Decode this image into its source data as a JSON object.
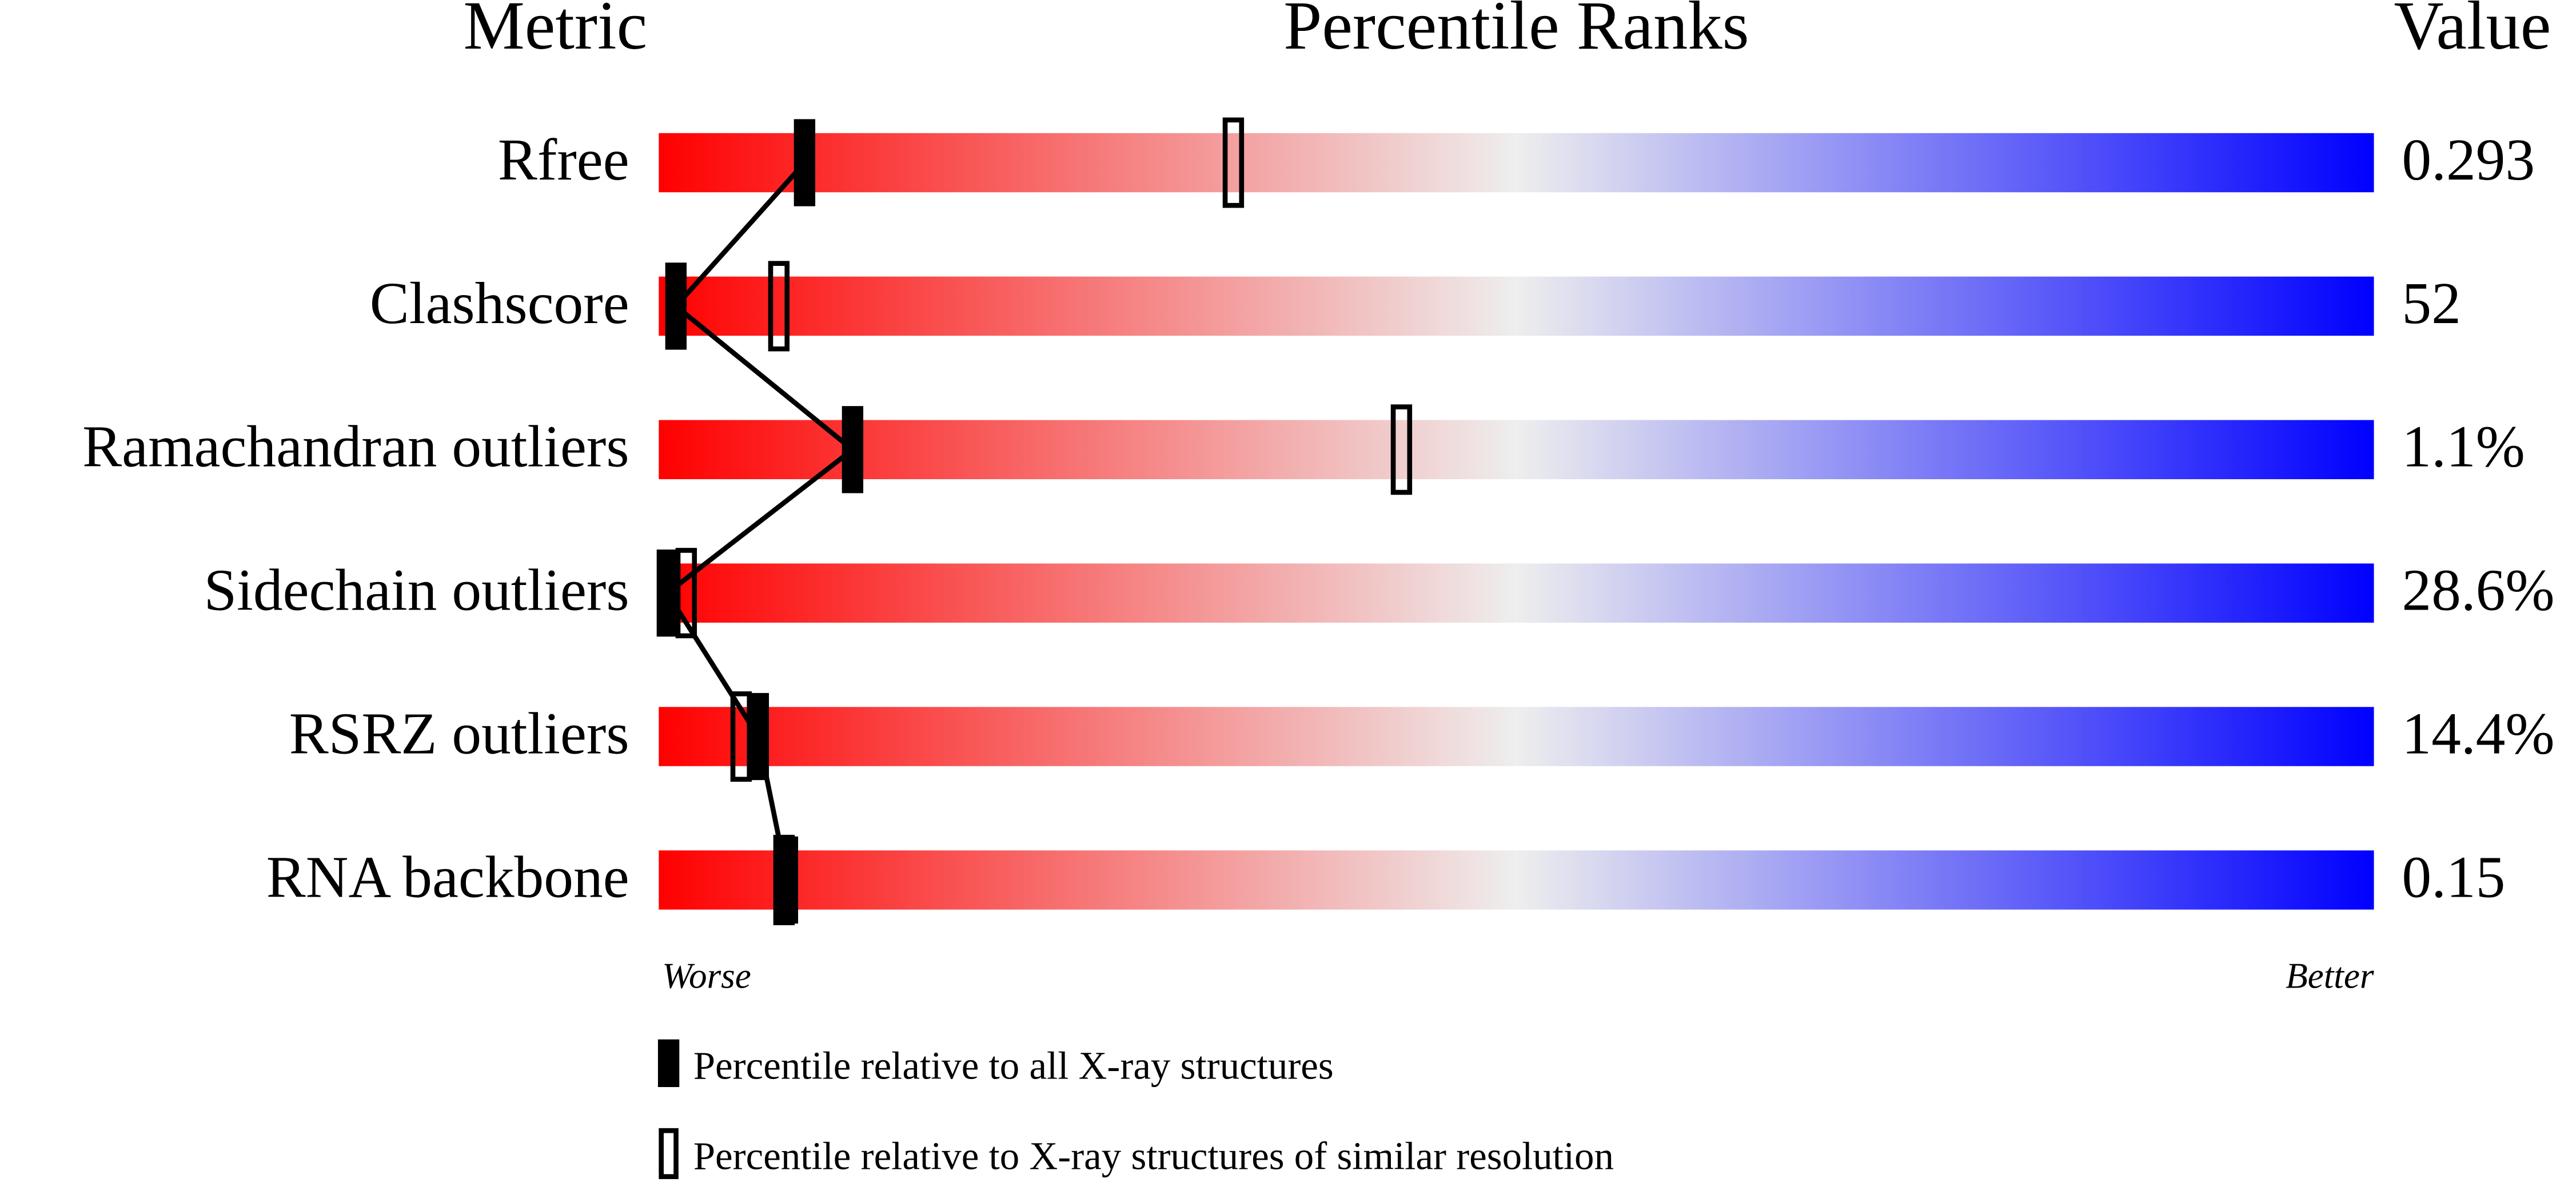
{
  "chart_data": {
    "type": "slider",
    "headers": [
      "Metric",
      "Percentile Ranks",
      "Value"
    ],
    "categories": [
      "Rfree",
      "Clashscore",
      "Ramachandran outliers",
      "Sidechain outliers",
      "RSRZ outliers",
      "RNA backbone"
    ],
    "metric_values": [
      "0.293",
      "52",
      "1.1%",
      "28.6%",
      "14.4%",
      "0.15"
    ],
    "series": [
      {
        "name": "Percentile relative to all X-ray structures",
        "style": "filled",
        "color": "#000000",
        "values": [
          8.5,
          1,
          11.3,
          0.5,
          5.8,
          7.5
        ]
      },
      {
        "name": "Percentile relative to X-ray structures of similar resolution",
        "style": "open",
        "color": "#000000",
        "values": [
          33.5,
          7,
          43.3,
          1.6,
          4.8,
          7.3
        ]
      }
    ],
    "xlim": [
      0,
      100
    ],
    "worse_label": "Worse",
    "better_label": "Better",
    "gradient": [
      "#ff0000",
      "#eeeeee",
      "#0000ff"
    ]
  }
}
